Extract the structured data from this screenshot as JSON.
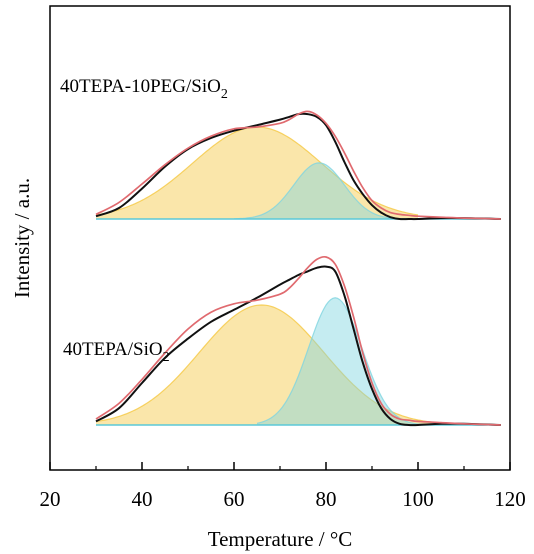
{
  "chart_data": {
    "type": "area",
    "xlabel": "Temperature / °C",
    "ylabel": "Intensity / a.u.",
    "xlim": [
      20,
      120
    ],
    "xticks": [
      20,
      40,
      60,
      80,
      100,
      120
    ],
    "yticks_shown": false,
    "grid": false,
    "colors": {
      "measured": "#111111",
      "fit": "#e06a6f",
      "peak1": "#f5c842",
      "peak2": "#7fd4e0",
      "baseline": "#5bc8d8"
    },
    "panels": [
      {
        "label_main": "40TEPA-10PEG/SiO",
        "label_sub": "2",
        "baseline": 0,
        "series": [
          {
            "role": "measured",
            "x": [
              30,
              35,
              40,
              45,
              50,
              55,
              60,
              65,
              70,
              72,
              74,
              76,
              78,
              80,
              82,
              84,
              86,
              88,
              90,
              92,
              94,
              96,
              98,
              100,
              105,
              110,
              118
            ],
            "y": [
              0.03,
              0.12,
              0.33,
              0.57,
              0.76,
              0.88,
              0.96,
              1.02,
              1.08,
              1.11,
              1.14,
              1.14,
              1.11,
              1.02,
              0.84,
              0.62,
              0.42,
              0.27,
              0.15,
              0.07,
              0.02,
              0.0,
              0.0,
              0.0,
              0.01,
              0.01,
              0.0
            ]
          },
          {
            "role": "fit",
            "x": [
              30,
              35,
              40,
              45,
              50,
              55,
              60,
              65,
              70,
              72,
              74,
              76,
              78,
              80,
              82,
              84,
              86,
              88,
              90,
              92,
              94,
              96,
              98,
              100,
              105,
              110,
              118
            ],
            "y": [
              0.05,
              0.18,
              0.38,
              0.59,
              0.77,
              0.9,
              0.98,
              1.0,
              1.04,
              1.08,
              1.14,
              1.17,
              1.13,
              1.04,
              0.9,
              0.72,
              0.52,
              0.34,
              0.2,
              0.12,
              0.07,
              0.05,
              0.04,
              0.03,
              0.02,
              0.01,
              0.0
            ]
          },
          {
            "role": "peak1",
            "center": 65,
            "height": 1.0,
            "width": 14,
            "xrange": [
              30,
              100
            ]
          },
          {
            "role": "peak2",
            "center": 78.5,
            "height": 0.61,
            "width": 5.5,
            "xrange": [
              60,
              98
            ]
          }
        ]
      },
      {
        "label_main": "40TEPA/SiO",
        "label_sub": "2",
        "baseline": 0,
        "series": [
          {
            "role": "measured",
            "x": [
              30,
              35,
              40,
              45,
              50,
              55,
              60,
              65,
              70,
              72,
              74,
              76,
              78,
              80,
              82,
              84,
              86,
              88,
              90,
              92,
              94,
              96,
              98,
              100,
              105,
              110,
              118
            ],
            "y": [
              0.03,
              0.14,
              0.35,
              0.56,
              0.72,
              0.86,
              0.96,
              1.06,
              1.17,
              1.21,
              1.25,
              1.28,
              1.31,
              1.32,
              1.28,
              1.08,
              0.8,
              0.52,
              0.3,
              0.14,
              0.05,
              0.01,
              0.0,
              0.0,
              0.01,
              0.01,
              0.0
            ]
          },
          {
            "role": "fit",
            "x": [
              30,
              35,
              40,
              45,
              50,
              55,
              60,
              65,
              70,
              72,
              74,
              76,
              78,
              80,
              82,
              84,
              86,
              88,
              90,
              92,
              94,
              96,
              98,
              100,
              105,
              110,
              118
            ],
            "y": [
              0.05,
              0.18,
              0.38,
              0.6,
              0.8,
              0.94,
              1.01,
              1.04,
              1.09,
              1.14,
              1.22,
              1.31,
              1.38,
              1.4,
              1.34,
              1.16,
              0.9,
              0.6,
              0.35,
              0.18,
              0.09,
              0.05,
              0.04,
              0.03,
              0.02,
              0.01,
              0.0
            ]
          },
          {
            "role": "peak1",
            "center": 66,
            "height": 1.0,
            "width": 13.5,
            "xrange": [
              30,
              103
            ]
          },
          {
            "role": "peak2",
            "center": 82,
            "height": 1.06,
            "width": 5.8,
            "xrange": [
              65,
              102
            ]
          }
        ]
      }
    ]
  }
}
